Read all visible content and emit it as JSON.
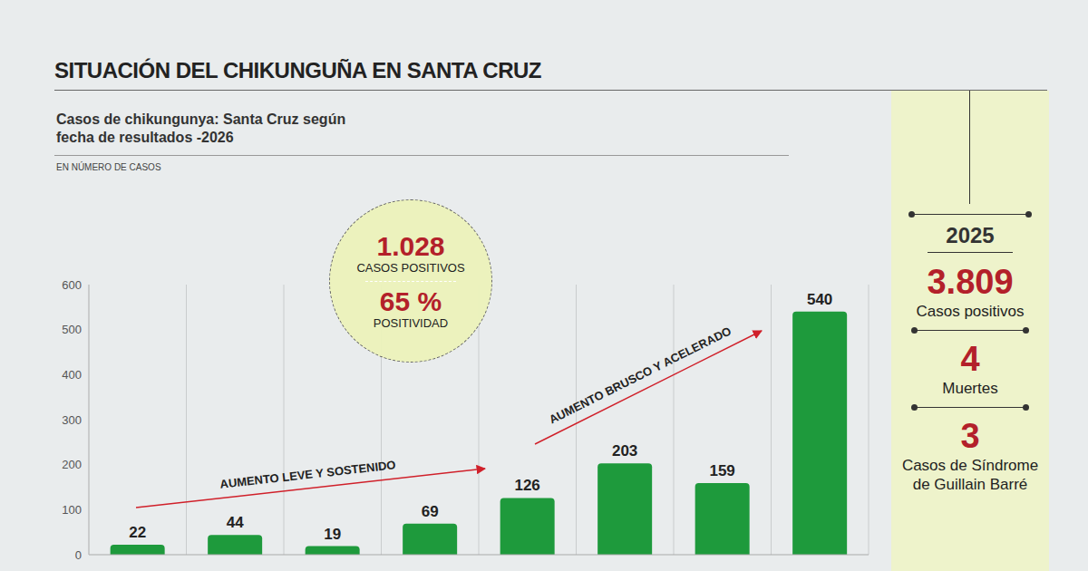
{
  "chart_data": {
    "type": "bar",
    "title": "SITUACIÓN DEL CHIKUNGUÑA EN SANTA CRUZ",
    "subtitle": "Casos de chikungunya: Santa Cruz según fecha de resultados -2026",
    "y_label": "EN NÚMERO DE CASOS",
    "categories": [
      null,
      null,
      null,
      null,
      null,
      null,
      null,
      null
    ],
    "values": [
      22,
      44,
      19,
      69,
      126,
      203,
      159,
      540
    ],
    "color": "#1e9a3c",
    "ylim": [
      0,
      600
    ],
    "yticks": [
      0,
      100,
      200,
      300,
      400,
      500,
      600
    ],
    "grid": true,
    "data_labels": true,
    "annotations": {
      "callout": [
        {
          "value": "1.028",
          "label": "CASOS POSITIVOS"
        },
        {
          "value": "65 %",
          "label": "POSITIVIDAD"
        }
      ],
      "trends": [
        "AUMENTO LEVE Y SOSTENIDO",
        "AUMENTO BRUSCO Y ACELERADO"
      ]
    }
  },
  "summary": {
    "year": "2025",
    "items": [
      {
        "value": "3.809",
        "label": "Casos positivos"
      },
      {
        "value": "4",
        "label": "Muertes"
      },
      {
        "value": "3",
        "label": "Casos de Síndrome de Guillain Barré"
      }
    ]
  }
}
